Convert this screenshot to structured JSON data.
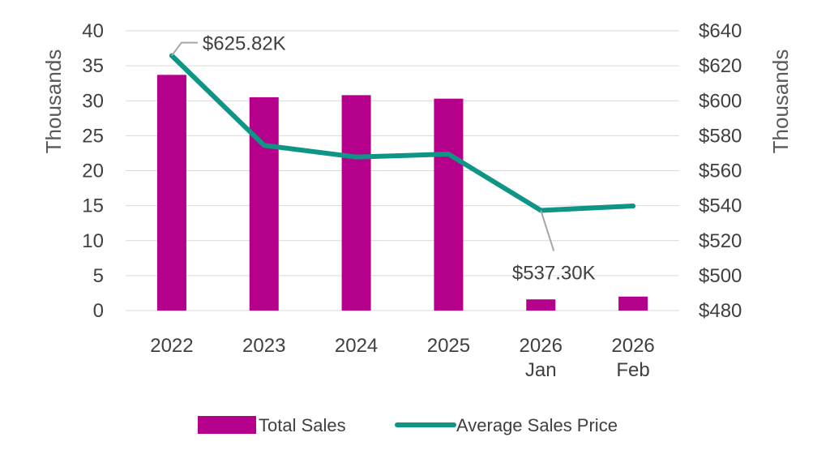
{
  "chart_data": {
    "type": "bar",
    "categories": [
      [
        "2022"
      ],
      [
        "2023"
      ],
      [
        "2024"
      ],
      [
        "2025"
      ],
      [
        "2026",
        "Jan"
      ],
      [
        "2026",
        "Feb"
      ]
    ],
    "series": [
      {
        "name": "Total Sales",
        "type": "bar",
        "axis": "left",
        "color": "#B5008C",
        "values": [
          33.7,
          30.5,
          30.8,
          30.3,
          1.6,
          2.0
        ]
      },
      {
        "name": "Average Sales Price",
        "type": "line",
        "axis": "right",
        "color": "#0E9585",
        "values": [
          625.82,
          574.5,
          567.8,
          569.5,
          537.3,
          539.8
        ]
      }
    ],
    "y_left": {
      "label": "Thousands",
      "ticks": [
        "0",
        "5",
        "10",
        "15",
        "20",
        "25",
        "30",
        "35",
        "40"
      ],
      "ylim": [
        0,
        40
      ]
    },
    "y_right": {
      "label": "Thousands",
      "ticks": [
        "$480",
        "$500",
        "$520",
        "$540",
        "$560",
        "$580",
        "$600",
        "$620",
        "$640"
      ],
      "ylim": [
        480,
        640
      ]
    },
    "annotations": [
      {
        "text": "$625.82K",
        "category_index": 0,
        "series": "Average Sales Price"
      },
      {
        "text": "$537.30K",
        "category_index": 4,
        "series": "Average Sales Price"
      }
    ],
    "grid": true,
    "legend": {
      "position": "bottom",
      "items": [
        "Total Sales",
        "Average Sales Price"
      ]
    }
  }
}
